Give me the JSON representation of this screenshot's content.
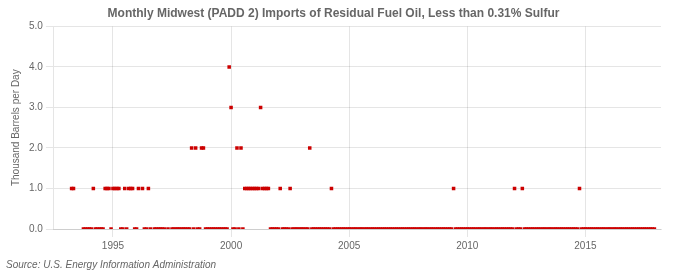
{
  "chart_data": {
    "type": "scatter",
    "title": "Monthly Midwest (PADD 2) Imports of Residual Fuel Oil, Less than 0.31% Sulfur",
    "ylabel": "Thousand Barrels per Day",
    "source": "Source: U.S. Energy Information Administration",
    "color": "#cc0000",
    "marker": "square",
    "grid": true,
    "xlim": [
      1992.5,
      2018.2
    ],
    "xticks": [
      1995,
      2000,
      2005,
      2010,
      2015
    ],
    "ylim": [
      0,
      5.0
    ],
    "yticks": [
      {
        "value": 0.0,
        "label": "0.0"
      },
      {
        "value": 1.0,
        "label": "1.0"
      },
      {
        "value": 2.0,
        "label": "2.0"
      },
      {
        "value": 3.0,
        "label": "3.0"
      },
      {
        "value": 4.0,
        "label": "4.0"
      },
      {
        "value": 5.0,
        "label": "5.0"
      }
    ],
    "x": [
      1993.25,
      1993.33,
      1993.75,
      1993.83,
      1993.92,
      1994.0,
      1994.08,
      1994.17,
      1994.25,
      1994.33,
      1994.42,
      1994.5,
      1994.58,
      1994.67,
      1994.75,
      1994.83,
      1994.92,
      1995.0,
      1995.08,
      1995.17,
      1995.25,
      1995.33,
      1995.42,
      1995.5,
      1995.58,
      1995.67,
      1995.75,
      1995.83,
      1995.92,
      1996.0,
      1996.08,
      1996.25,
      1996.33,
      1996.42,
      1996.5,
      1996.58,
      1996.75,
      1996.83,
      1996.92,
      1997.0,
      1997.08,
      1997.17,
      1997.33,
      1997.5,
      1997.58,
      1997.67,
      1997.75,
      1997.83,
      1997.92,
      1998.0,
      1998.08,
      1998.17,
      1998.25,
      1998.33,
      1998.42,
      1998.5,
      1998.58,
      1998.67,
      1998.75,
      1998.83,
      1998.92,
      1999.0,
      1999.08,
      1999.17,
      1999.25,
      1999.33,
      1999.42,
      1999.5,
      1999.58,
      1999.67,
      1999.75,
      1999.83,
      1999.92,
      2000.0,
      2000.08,
      2000.17,
      2000.25,
      2000.33,
      2000.42,
      2000.5,
      2000.58,
      2000.67,
      2000.75,
      2000.83,
      2000.92,
      2001.0,
      2001.08,
      2001.17,
      2001.25,
      2001.33,
      2001.42,
      2001.5,
      2001.58,
      2001.67,
      2001.75,
      2001.83,
      2001.92,
      2002.0,
      2002.08,
      2002.17,
      2002.25,
      2002.33,
      2002.42,
      2002.5,
      2002.58,
      2002.67,
      2002.75,
      2002.83,
      2002.92,
      2003.0,
      2003.08,
      2003.17,
      2003.25,
      2003.33,
      2003.42,
      2003.5,
      2003.58,
      2003.67,
      2003.75,
      2003.83,
      2003.92,
      2004.0,
      2004.08,
      2004.17,
      2004.25,
      2004.33,
      2004.42,
      2004.5,
      2004.58,
      2004.67,
      2004.75,
      2004.83,
      2004.92,
      2005.0,
      2005.08,
      2005.17,
      2005.25,
      2005.33,
      2005.42,
      2005.5,
      2005.58,
      2005.67,
      2005.75,
      2005.83,
      2005.92,
      2006.0,
      2006.08,
      2006.17,
      2006.25,
      2006.33,
      2006.42,
      2006.5,
      2006.58,
      2006.67,
      2006.75,
      2006.83,
      2006.92,
      2007.0,
      2007.08,
      2007.17,
      2007.25,
      2007.33,
      2007.42,
      2007.5,
      2007.58,
      2007.67,
      2007.75,
      2007.83,
      2007.92,
      2008.0,
      2008.08,
      2008.17,
      2008.25,
      2008.33,
      2008.42,
      2008.5,
      2008.58,
      2008.67,
      2008.75,
      2008.83,
      2008.92,
      2009.0,
      2009.08,
      2009.17,
      2009.25,
      2009.33,
      2009.42,
      2009.5,
      2009.58,
      2009.67,
      2009.75,
      2009.83,
      2009.92,
      2010.0,
      2010.08,
      2010.17,
      2010.25,
      2010.33,
      2010.42,
      2010.5,
      2010.58,
      2010.67,
      2010.75,
      2010.83,
      2010.92,
      2011.0,
      2011.08,
      2011.17,
      2011.25,
      2011.33,
      2011.42,
      2011.5,
      2011.58,
      2011.67,
      2011.75,
      2011.83,
      2011.92,
      2012.0,
      2012.08,
      2012.17,
      2012.25,
      2012.33,
      2012.42,
      2012.5,
      2012.58,
      2012.67,
      2012.75,
      2012.83,
      2012.92,
      2013.0,
      2013.08,
      2013.17,
      2013.25,
      2013.33,
      2013.42,
      2013.5,
      2013.58,
      2013.67,
      2013.75,
      2013.83,
      2013.92,
      2014.0,
      2014.08,
      2014.17,
      2014.25,
      2014.33,
      2014.42,
      2014.5,
      2014.58,
      2014.67,
      2014.75,
      2014.83,
      2014.92,
      2015.0,
      2015.08,
      2015.17,
      2015.25,
      2015.33,
      2015.42,
      2015.5,
      2015.58,
      2015.67,
      2015.75,
      2015.83,
      2015.92,
      2016.0,
      2016.08,
      2016.17,
      2016.25,
      2016.33,
      2016.42,
      2016.5,
      2016.58,
      2016.67,
      2016.75,
      2016.83,
      2016.92,
      2017.0,
      2017.08,
      2017.17,
      2017.25,
      2017.33,
      2017.42,
      2017.5,
      2017.58,
      2017.67,
      2017.75,
      2017.83,
      2017.92
    ],
    "values": [
      1,
      1,
      0,
      0,
      0,
      0,
      0,
      1,
      0,
      0,
      0,
      0,
      0,
      1,
      1,
      1,
      0,
      1,
      1,
      1,
      1,
      0,
      0,
      1,
      0,
      1,
      1,
      1,
      0,
      0,
      1,
      1,
      0,
      0,
      1,
      0,
      0,
      0,
      0,
      0,
      0,
      0,
      0,
      0,
      0,
      0,
      0,
      0,
      0,
      0,
      0,
      0,
      0,
      2,
      0,
      2,
      0,
      0,
      2,
      2,
      0,
      0,
      0,
      0,
      0,
      0,
      0,
      0,
      0,
      0,
      0,
      0,
      4,
      3,
      0,
      0,
      2,
      0,
      2,
      0,
      1,
      1,
      1,
      1,
      1,
      1,
      1,
      1,
      3,
      1,
      1,
      1,
      1,
      0,
      0,
      0,
      0,
      0,
      1,
      0,
      0,
      0,
      0,
      1,
      0,
      0,
      0,
      0,
      0,
      0,
      0,
      0,
      0,
      2,
      0,
      0,
      0,
      0,
      0,
      0,
      0,
      0,
      0,
      0,
      1,
      0,
      0,
      0,
      0,
      0,
      0,
      0,
      0,
      0,
      0,
      0,
      0,
      0,
      0,
      0,
      0,
      0,
      0,
      0,
      0,
      0,
      0,
      0,
      0,
      0,
      0,
      0,
      0,
      0,
      0,
      0,
      0,
      0,
      0,
      0,
      0,
      0,
      0,
      0,
      0,
      0,
      0,
      0,
      0,
      0,
      0,
      0,
      0,
      0,
      0,
      0,
      0,
      0,
      0,
      0,
      0,
      0,
      0,
      0,
      0,
      0,
      1,
      0,
      0,
      0,
      0,
      0,
      0,
      0,
      0,
      0,
      0,
      0,
      0,
      0,
      0,
      0,
      0,
      0,
      0,
      0,
      0,
      0,
      0,
      0,
      0,
      0,
      0,
      0,
      0,
      0,
      0,
      1,
      0,
      0,
      0,
      1,
      0,
      0,
      0,
      0,
      0,
      0,
      0,
      0,
      0,
      0,
      0,
      0,
      0,
      0,
      0,
      0,
      0,
      0,
      0,
      0,
      0,
      0,
      0,
      0,
      0,
      0,
      0,
      0,
      1,
      0,
      0,
      0,
      0,
      0,
      0,
      0,
      0,
      0,
      0,
      0,
      0,
      0,
      0,
      0,
      0,
      0,
      0,
      0,
      0,
      0,
      0,
      0,
      0,
      0,
      0,
      0,
      0,
      0,
      0,
      0,
      0,
      0,
      0,
      0,
      0,
      0,
      0
    ]
  }
}
